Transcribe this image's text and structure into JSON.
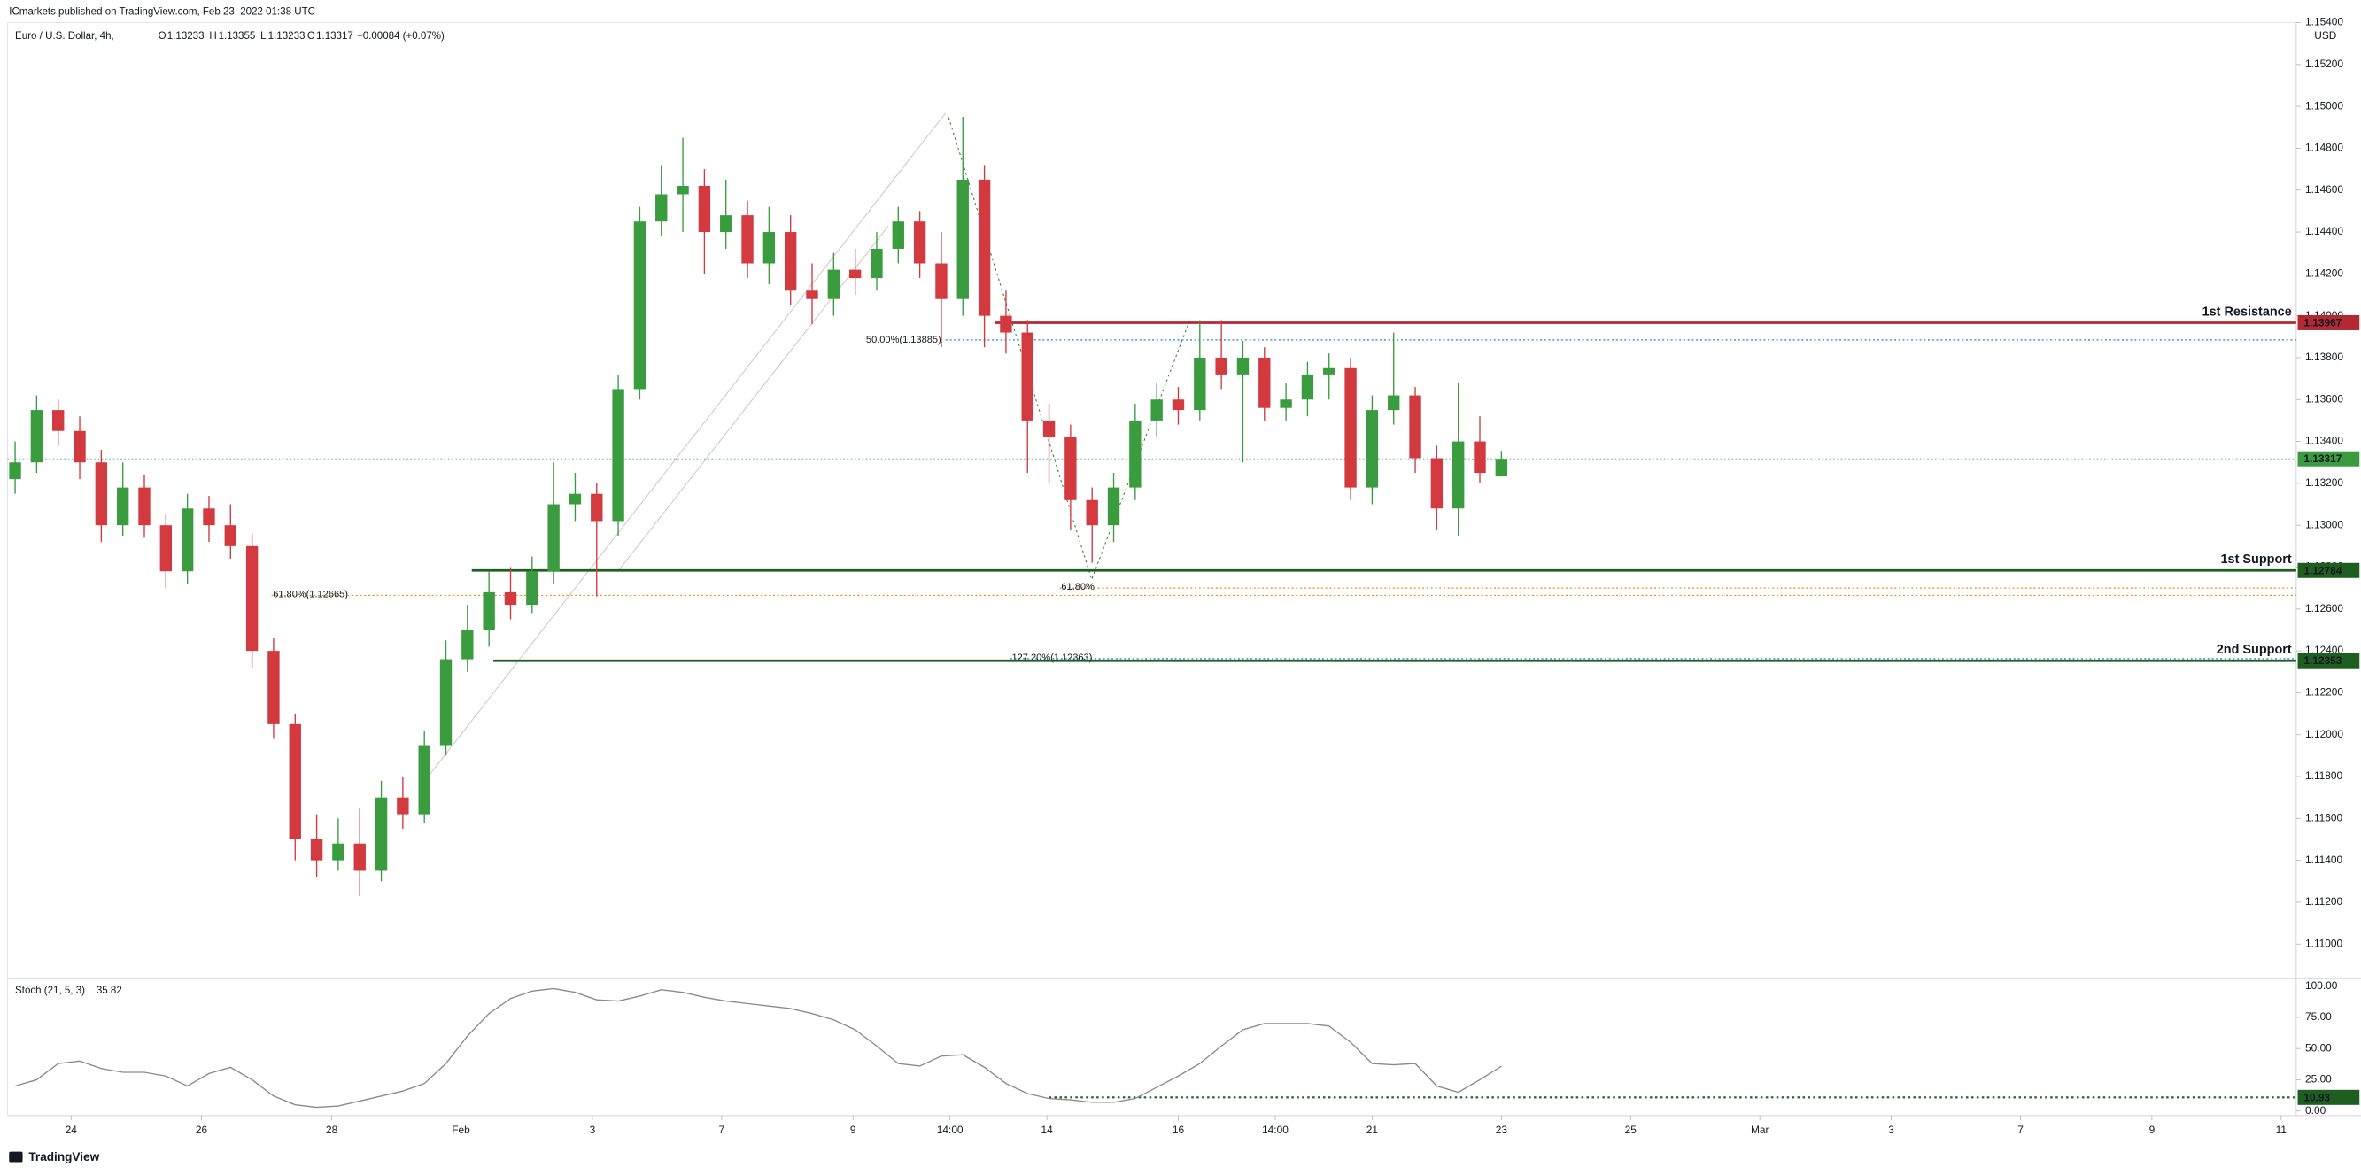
{
  "header": {
    "published": "ICmarkets published on TradingView.com, Feb 23, 2022 01:38 UTC",
    "brand": "TradingView"
  },
  "chart_data": [
    {
      "type": "candlestick",
      "title": "Euro / U.S. Dollar, 4h,",
      "ohlc_labels": [
        "O",
        "H",
        "L",
        "C"
      ],
      "change": "+0.00084 (+0.07%)",
      "currency": "USD",
      "up_color": "#3a9c3f",
      "down_color": "#d23a3f",
      "open": [
        1.1322,
        1.133,
        1.1355,
        1.1345,
        1.133,
        1.13,
        1.1318,
        1.13,
        1.1278,
        1.1308,
        1.13,
        1.129,
        1.124,
        1.1205,
        1.115,
        1.114,
        1.1148,
        1.1135,
        1.117,
        1.1162,
        1.1195,
        1.1236,
        1.125,
        1.1268,
        1.1262,
        1.1278,
        1.131,
        1.1315,
        1.1302,
        1.1365,
        1.1445,
        1.1458,
        1.1462,
        1.144,
        1.1448,
        1.1425,
        1.144,
        1.1412,
        1.1408,
        1.1422,
        1.1418,
        1.1432,
        1.1445,
        1.1425,
        1.1408,
        1.1465,
        1.14,
        1.1392,
        1.135,
        1.1342,
        1.1312,
        1.13,
        1.1318,
        1.135,
        1.136,
        1.1355,
        1.138,
        1.1372,
        1.138,
        1.1356,
        1.136,
        1.1372,
        1.1375,
        1.1318,
        1.1355,
        1.1362,
        1.1332,
        1.1308,
        1.134,
        1.13233
      ],
      "high": [
        1.134,
        1.1362,
        1.136,
        1.1352,
        1.1336,
        1.133,
        1.1324,
        1.1305,
        1.1315,
        1.1314,
        1.131,
        1.1296,
        1.1246,
        1.121,
        1.1162,
        1.116,
        1.1165,
        1.1178,
        1.118,
        1.1202,
        1.1245,
        1.1262,
        1.1278,
        1.128,
        1.1285,
        1.133,
        1.1325,
        1.132,
        1.1372,
        1.1452,
        1.1472,
        1.1485,
        1.147,
        1.1465,
        1.1455,
        1.1452,
        1.1448,
        1.1425,
        1.143,
        1.1432,
        1.144,
        1.1452,
        1.145,
        1.144,
        1.1495,
        1.1472,
        1.1412,
        1.1398,
        1.1358,
        1.1348,
        1.1318,
        1.1325,
        1.1358,
        1.1368,
        1.1366,
        1.1398,
        1.1398,
        1.1388,
        1.1385,
        1.1368,
        1.1378,
        1.1382,
        1.138,
        1.1362,
        1.1392,
        1.1366,
        1.1338,
        1.1368,
        1.1352,
        1.13355
      ],
      "low": [
        1.1315,
        1.1325,
        1.1338,
        1.1322,
        1.1292,
        1.1295,
        1.1294,
        1.127,
        1.1272,
        1.1292,
        1.1284,
        1.1232,
        1.1198,
        1.114,
        1.1132,
        1.1135,
        1.1123,
        1.113,
        1.1155,
        1.1158,
        1.119,
        1.123,
        1.1242,
        1.1255,
        1.1258,
        1.1272,
        1.1302,
        1.1266,
        1.1295,
        1.136,
        1.1438,
        1.144,
        1.142,
        1.1432,
        1.1418,
        1.1415,
        1.1405,
        1.1396,
        1.14,
        1.141,
        1.1412,
        1.1425,
        1.1418,
        1.1385,
        1.14,
        1.1385,
        1.1382,
        1.1325,
        1.132,
        1.1298,
        1.1282,
        1.1292,
        1.1312,
        1.1342,
        1.1348,
        1.135,
        1.1365,
        1.133,
        1.135,
        1.135,
        1.1352,
        1.136,
        1.1312,
        1.131,
        1.1348,
        1.1325,
        1.1298,
        1.1295,
        1.132,
        1.13233
      ],
      "close": [
        1.133,
        1.1355,
        1.1345,
        1.133,
        1.13,
        1.1318,
        1.13,
        1.1278,
        1.1308,
        1.13,
        1.129,
        1.124,
        1.1205,
        1.115,
        1.114,
        1.1148,
        1.1135,
        1.117,
        1.1162,
        1.1195,
        1.1236,
        1.125,
        1.1268,
        1.1262,
        1.1278,
        1.131,
        1.1315,
        1.1302,
        1.1365,
        1.1445,
        1.1458,
        1.1462,
        1.144,
        1.1448,
        1.1425,
        1.144,
        1.1412,
        1.1408,
        1.1422,
        1.1418,
        1.1432,
        1.1445,
        1.1425,
        1.1408,
        1.1465,
        1.14,
        1.1392,
        1.135,
        1.1342,
        1.1312,
        1.13,
        1.1318,
        1.135,
        1.136,
        1.1355,
        1.138,
        1.1372,
        1.138,
        1.1356,
        1.136,
        1.1372,
        1.1375,
        1.1318,
        1.1355,
        1.1362,
        1.1332,
        1.1308,
        1.134,
        1.1325,
        1.13317
      ],
      "xlim": [
        -0.35,
        105.9
      ],
      "xticks": [
        {
          "value": 2.6,
          "label": "24"
        },
        {
          "value": 8.65,
          "label": "26"
        },
        {
          "value": 14.7,
          "label": "28"
        },
        {
          "value": 20.7,
          "label": "Feb"
        },
        {
          "value": 26.8,
          "label": "3"
        },
        {
          "value": 32.8,
          "label": "7"
        },
        {
          "value": 38.9,
          "label": "9"
        },
        {
          "value": 43.4,
          "label": "14:00"
        },
        {
          "value": 47.9,
          "label": "14"
        },
        {
          "value": 54,
          "label": "16"
        },
        {
          "value": 58.5,
          "label": "14:00"
        },
        {
          "value": 63,
          "label": "21"
        },
        {
          "value": 69,
          "label": "23"
        },
        {
          "value": 75,
          "label": "25"
        },
        {
          "value": 81,
          "label": "Mar"
        },
        {
          "value": 87.1,
          "label": "3"
        },
        {
          "value": 93.1,
          "label": "7"
        },
        {
          "value": 99.2,
          "label": "9"
        },
        {
          "value": 105.2,
          "label": "11"
        }
      ],
      "ylim": [
        1.1085,
        1.154
      ],
      "yticks": [
        {
          "value": 1.154,
          "label": "1.15400"
        },
        {
          "value": 1.152,
          "label": "1.15200"
        },
        {
          "value": 1.15,
          "label": "1.15000"
        },
        {
          "value": 1.148,
          "label": "1.14800"
        },
        {
          "value": 1.146,
          "label": "1.14600"
        },
        {
          "value": 1.144,
          "label": "1.14400"
        },
        {
          "value": 1.142,
          "label": "1.14200"
        },
        {
          "value": 1.14,
          "label": "1.14000"
        },
        {
          "value": 1.138,
          "label": "1.13800"
        },
        {
          "value": 1.136,
          "label": "1.13600"
        },
        {
          "value": 1.134,
          "label": "1.13400"
        },
        {
          "value": 1.132,
          "label": "1.13200"
        },
        {
          "value": 1.13,
          "label": "1.13000"
        },
        {
          "value": 1.128,
          "label": "1.12800"
        },
        {
          "value": 1.126,
          "label": "1.12600"
        },
        {
          "value": 1.124,
          "label": "1.12400"
        },
        {
          "value": 1.122,
          "label": "1.12200"
        },
        {
          "value": 1.12,
          "label": "1.12000"
        },
        {
          "value": 1.118,
          "label": "1.11800"
        },
        {
          "value": 1.116,
          "label": "1.11600"
        },
        {
          "value": 1.114,
          "label": "1.11400"
        },
        {
          "value": 1.112,
          "label": "1.11200"
        },
        {
          "value": 1.11,
          "label": "1.11000"
        }
      ],
      "levels": [
        {
          "name": "1st Resistance",
          "value": 1.13967,
          "color": "#b22833"
        },
        {
          "name": "1st Support",
          "value": 1.12784,
          "color": "#1e5e20"
        },
        {
          "name": "2nd Support",
          "value": 1.12353,
          "color": "#1e5e20"
        }
      ],
      "fib": [
        {
          "label": "50.00%(1.13885)",
          "value": 1.13885,
          "color": "#2f7fd0"
        },
        {
          "label": "61.80%(1.12665)",
          "value": 1.12665,
          "color": "#d39a1c"
        },
        {
          "label": "61.80%",
          "value": 1.127,
          "color": "#d39a1c"
        },
        {
          "label": "127.20%(1.12363)",
          "value": 1.12363,
          "color": "#2f7fd0"
        }
      ],
      "last_price_color": "#3a9c3f"
    },
    {
      "type": "line",
      "title": "Stoch (21, 5, 3)",
      "color": "#8a8a8a",
      "values": [
        20,
        25,
        38,
        40,
        34,
        31,
        31,
        28,
        20,
        30,
        35,
        25,
        12,
        5,
        3,
        4,
        8,
        12,
        16,
        22,
        38,
        60,
        78,
        90,
        96,
        98,
        95,
        89,
        88,
        92,
        97,
        95,
        91,
        88,
        86,
        84,
        82,
        78,
        73,
        65,
        52,
        38,
        36,
        44,
        45,
        35,
        22,
        14,
        10,
        9,
        7,
        7,
        10,
        19,
        28,
        38,
        52,
        65,
        70,
        70,
        70,
        68,
        55,
        38,
        37,
        38,
        20,
        15,
        25,
        35.82
      ],
      "ylim": [
        0,
        100
      ],
      "yticks": [
        {
          "value": 100,
          "label": "100.00"
        },
        {
          "value": 75,
          "label": "75.00"
        },
        {
          "value": 50,
          "label": "50.00"
        },
        {
          "value": 25,
          "label": "25.00"
        },
        {
          "value": 0,
          "label": "0.00"
        }
      ],
      "level": 10.93,
      "level_color": "#1e5e20"
    }
  ]
}
